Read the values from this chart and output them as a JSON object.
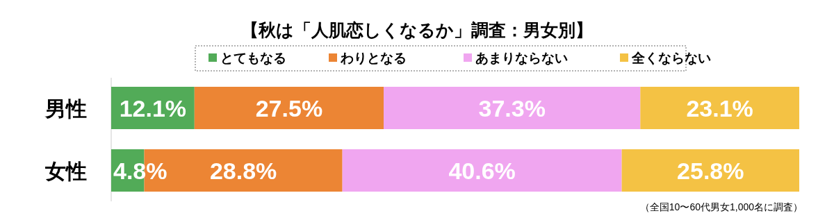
{
  "chart_data": {
    "type": "bar",
    "orientation": "horizontal",
    "stacked": true,
    "title": "【秋は「人肌恋しくなるか」調査：男女別】",
    "categories": [
      "男性",
      "女性"
    ],
    "series": [
      {
        "name": "とてもなる",
        "color": "#52ab58",
        "values": [
          12.1,
          4.8
        ],
        "value_labels": [
          "12.1%",
          "4.8%"
        ]
      },
      {
        "name": "わりとなる",
        "color": "#ec8534",
        "values": [
          27.5,
          28.8
        ],
        "value_labels": [
          "27.5%",
          "28.8%"
        ]
      },
      {
        "name": "あまりならない",
        "color": "#f0a6f0",
        "values": [
          37.3,
          40.6
        ],
        "value_labels": [
          "37.3%",
          "40.6%"
        ]
      },
      {
        "name": "全くならない",
        "color": "#f4c244",
        "values": [
          23.1,
          25.8
        ],
        "value_labels": [
          "23.1%",
          "25.8%"
        ]
      }
    ],
    "legend": "top",
    "annotations": [
      "（全国10〜60代男女1,000名に調査）"
    ]
  }
}
